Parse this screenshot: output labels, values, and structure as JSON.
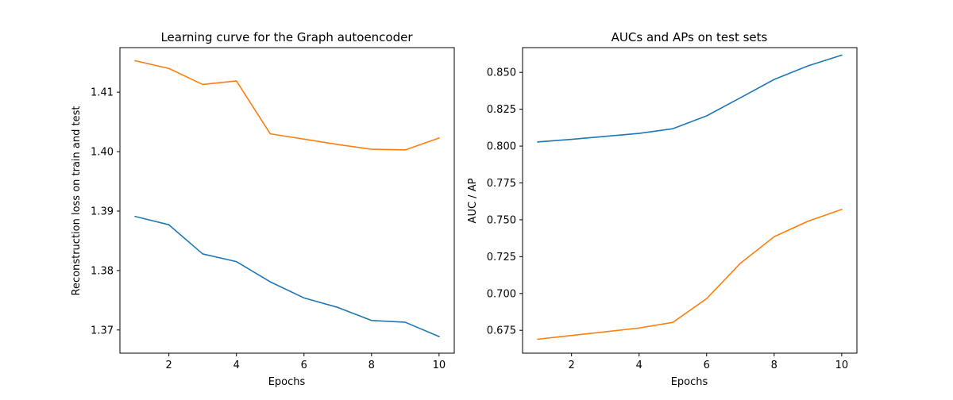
{
  "chart_data": [
    {
      "type": "line",
      "title": "Learning curve for the Graph autoencoder",
      "xlabel": "Epochs",
      "ylabel": "Reconstruction loss on train and test",
      "xlim": [
        0.55,
        10.45
      ],
      "ylim": [
        1.3661,
        1.4175
      ],
      "xticks": [
        2,
        4,
        6,
        8,
        10
      ],
      "xtick_labels": [
        "2",
        "4",
        "6",
        "8",
        "10"
      ],
      "yticks": [
        1.37,
        1.38,
        1.39,
        1.4,
        1.41
      ],
      "ytick_labels": [
        "1.37",
        "1.38",
        "1.39",
        "1.40",
        "1.41"
      ],
      "x": [
        1,
        2,
        3,
        4,
        5,
        6,
        7,
        8,
        9,
        10
      ],
      "series": [
        {
          "color": "#1f77b4",
          "values": [
            1.3891,
            1.3877,
            1.3828,
            1.3815,
            1.3781,
            1.3754,
            1.3738,
            1.3716,
            1.3713,
            1.3689
          ]
        },
        {
          "color": "#ff7f0e",
          "values": [
            1.4153,
            1.414,
            1.4113,
            1.4119,
            1.403,
            1.4021,
            1.4012,
            1.4004,
            1.4003,
            1.4023
          ]
        }
      ],
      "grid": false
    },
    {
      "type": "line",
      "title": "AUCs and APs on test sets",
      "xlabel": "Epochs",
      "ylabel": "AUC / AP",
      "xlim": [
        0.55,
        10.45
      ],
      "ylim": [
        0.6595,
        0.8668
      ],
      "xticks": [
        2,
        4,
        6,
        8,
        10
      ],
      "xtick_labels": [
        "2",
        "4",
        "6",
        "8",
        "10"
      ],
      "yticks": [
        0.675,
        0.7,
        0.725,
        0.75,
        0.775,
        0.8,
        0.825,
        0.85
      ],
      "ytick_labels": [
        "0.675",
        "0.700",
        "0.725",
        "0.750",
        "0.775",
        "0.800",
        "0.825",
        "0.850"
      ],
      "x": [
        1,
        2,
        3,
        4,
        5,
        6,
        7,
        8,
        9,
        10
      ],
      "series": [
        {
          "color": "#1f77b4",
          "values": [
            0.8028,
            0.8046,
            0.8066,
            0.8086,
            0.8118,
            0.8205,
            0.8328,
            0.8452,
            0.8544,
            0.8617
          ]
        },
        {
          "color": "#ff7f0e",
          "values": [
            0.669,
            0.6715,
            0.674,
            0.6766,
            0.6804,
            0.6965,
            0.7205,
            0.7385,
            0.749,
            0.757
          ]
        }
      ],
      "grid": false
    }
  ]
}
